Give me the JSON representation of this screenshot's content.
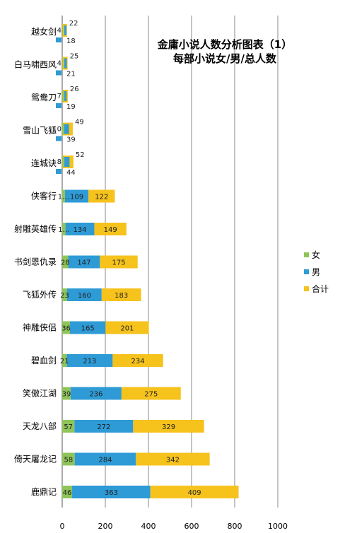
{
  "chart_data": {
    "type": "bar",
    "orientation": "horizontal",
    "title_line1": "金庸小说人数分析图表（1）",
    "title_line2": "每部小说女/男/总人数",
    "categories": [
      "越女剑",
      "白马啸西风",
      "鸳鸯刀",
      "雪山飞狐",
      "连城诀",
      "侠客行",
      "射雕英雄传",
      "书剑恩仇录",
      "飞狐外传",
      "神雕侠侣",
      "碧血剑",
      "笑傲江湖",
      "天龙八部",
      "倚天屠龙记",
      "鹿鼎记"
    ],
    "series": [
      {
        "name": "女",
        "color": "#8fc45a",
        "values": [
          4,
          4,
          7,
          10,
          8,
          13,
          15,
          28,
          23,
          36,
          21,
          39,
          57,
          58,
          46
        ]
      },
      {
        "name": "男",
        "color": "#2e9bd6",
        "values": [
          18,
          21,
          19,
          39,
          44,
          109,
          134,
          147,
          160,
          165,
          213,
          236,
          272,
          284,
          363
        ]
      },
      {
        "name": "合计",
        "color": "#f6c21c",
        "values": [
          22,
          25,
          26,
          49,
          52,
          122,
          149,
          175,
          183,
          201,
          234,
          275,
          329,
          342,
          409
        ]
      }
    ],
    "data_labels": {
      "女": [
        "4",
        "4",
        "7",
        "10",
        "8",
        "1…",
        "1…",
        "28",
        "23",
        "36",
        "21",
        "39",
        "57",
        "58",
        "46"
      ],
      "男": [
        "18",
        "21",
        "19",
        "39",
        "44",
        "109",
        "134",
        "147",
        "160",
        "165",
        "213",
        "236",
        "272",
        "284",
        "363"
      ],
      "合计": [
        "22",
        "25",
        "26",
        "49",
        "52",
        "122",
        "149",
        "175",
        "183",
        "201",
        "234",
        "275",
        "329",
        "342",
        "409"
      ]
    },
    "xlim": [
      0,
      1000
    ],
    "xticks": [
      "0",
      "200",
      "400",
      "600",
      "800",
      "1000"
    ],
    "grid": "vertical",
    "legend_position": "right"
  }
}
